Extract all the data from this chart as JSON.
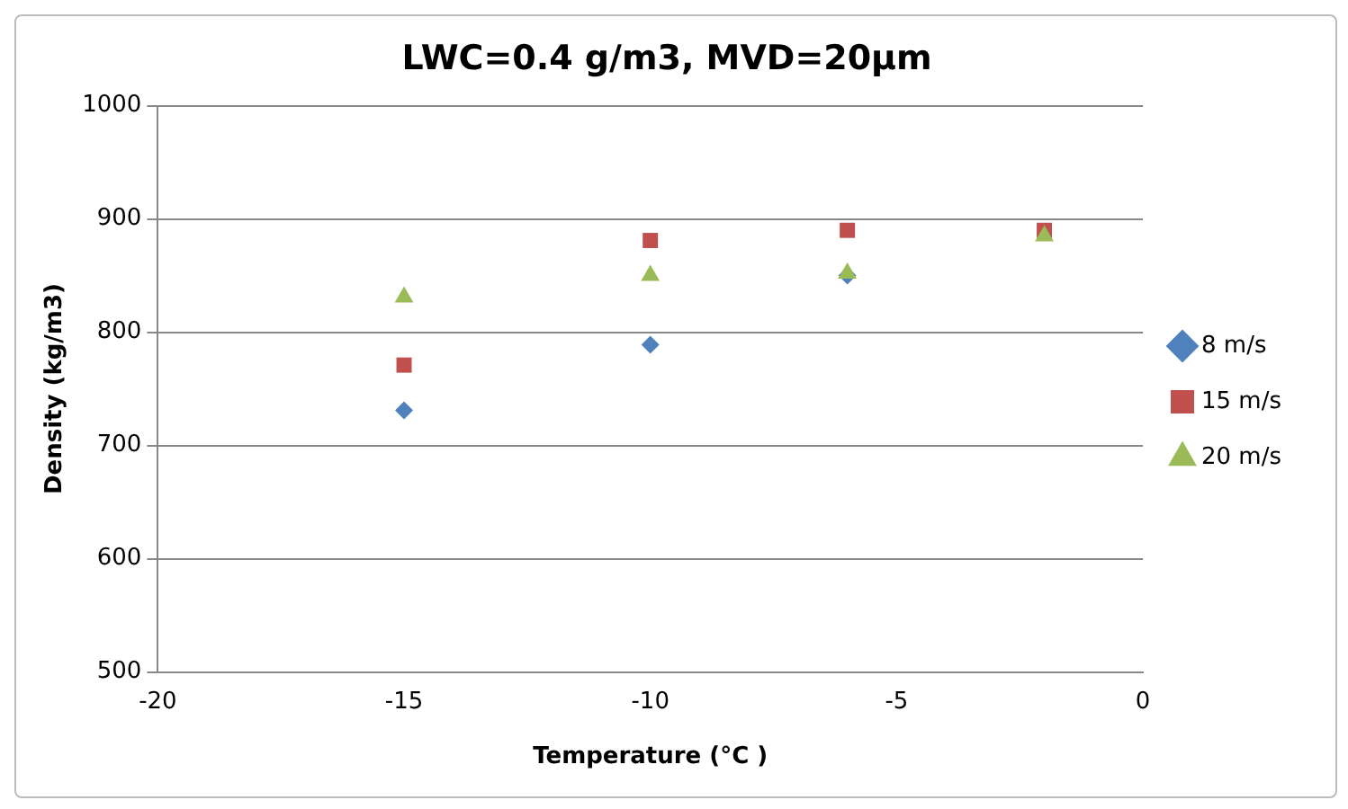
{
  "chart_data": {
    "type": "scatter",
    "title": "LWC=0.4 g/m3, MVD=20µm",
    "xlabel": "Temperature (°C )",
    "ylabel": "Density (kg/m3)",
    "x": [
      -15,
      -10,
      -6,
      -2
    ],
    "series": [
      {
        "name": "8 m/s",
        "color": "#4f81bd",
        "marker": "diamond",
        "values": [
          731,
          789,
          850,
          null
        ]
      },
      {
        "name": "15 m/s",
        "color": "#c0504d",
        "marker": "square",
        "values": [
          771,
          881,
          890,
          890
        ]
      },
      {
        "name": "20 m/s",
        "color": "#9bbb59",
        "marker": "triangle",
        "values": [
          831,
          850,
          852,
          885
        ]
      }
    ],
    "xlim": [
      -20,
      0
    ],
    "xticks": [
      -20,
      -15,
      -10,
      -5,
      0
    ],
    "ylim": [
      500,
      1000
    ],
    "yticks": [
      500,
      600,
      700,
      800,
      900,
      1000
    ],
    "grid": "y",
    "legend": "right"
  }
}
